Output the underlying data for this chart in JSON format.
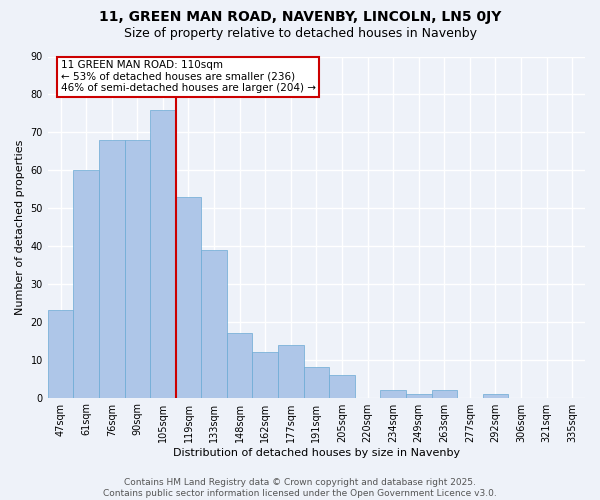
{
  "title": "11, GREEN MAN ROAD, NAVENBY, LINCOLN, LN5 0JY",
  "subtitle": "Size of property relative to detached houses in Navenby",
  "xlabel": "Distribution of detached houses by size in Navenby",
  "ylabel": "Number of detached properties",
  "categories": [
    "47sqm",
    "61sqm",
    "76sqm",
    "90sqm",
    "105sqm",
    "119sqm",
    "133sqm",
    "148sqm",
    "162sqm",
    "177sqm",
    "191sqm",
    "205sqm",
    "220sqm",
    "234sqm",
    "249sqm",
    "263sqm",
    "277sqm",
    "292sqm",
    "306sqm",
    "321sqm",
    "335sqm"
  ],
  "values": [
    23,
    60,
    68,
    68,
    76,
    53,
    39,
    17,
    12,
    14,
    8,
    6,
    0,
    2,
    1,
    2,
    0,
    1,
    0,
    0,
    0
  ],
  "bar_color": "#aec6e8",
  "bar_edge_color": "#6aaad4",
  "vline_x": 4,
  "vline_color": "#cc0000",
  "annotation_line1": "11 GREEN MAN ROAD: 110sqm",
  "annotation_line2": "← 53% of detached houses are smaller (236)",
  "annotation_line3": "46% of semi-detached houses are larger (204) →",
  "annotation_box_color": "#ffffff",
  "annotation_box_edge": "#cc0000",
  "ylim": [
    0,
    90
  ],
  "yticks": [
    0,
    10,
    20,
    30,
    40,
    50,
    60,
    70,
    80,
    90
  ],
  "footer_text": "Contains HM Land Registry data © Crown copyright and database right 2025.\nContains public sector information licensed under the Open Government Licence v3.0.",
  "background_color": "#eef2f9",
  "grid_color": "#ffffff",
  "title_fontsize": 10,
  "subtitle_fontsize": 9,
  "axis_label_fontsize": 8,
  "tick_fontsize": 7,
  "annotation_fontsize": 7.5,
  "footer_fontsize": 6.5
}
